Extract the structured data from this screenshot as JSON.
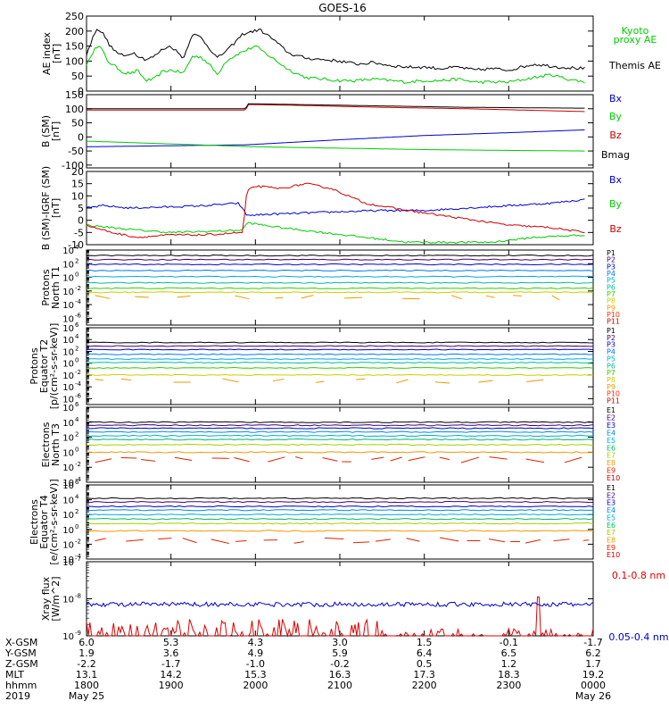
{
  "title": "GOES-16",
  "chart_data": [
    {
      "type": "line",
      "ylabel": [
        "AE index",
        "[nT]"
      ],
      "ylim": [
        0,
        250
      ],
      "yscale": "linear",
      "yticks": [
        0,
        50,
        100,
        150,
        200,
        250
      ],
      "yticklabels": [
        "0",
        "50",
        "100",
        "150",
        "200",
        "250"
      ],
      "series": [
        {
          "name": "Kyoto proxy AE",
          "label_lines": [
            "Kyoto",
            "proxy AE"
          ],
          "color": "#00cc00",
          "x": [
            0,
            0.05,
            0.1,
            0.17,
            0.25,
            0.35,
            0.45,
            0.55,
            0.6,
            0.7,
            0.8,
            0.9,
            1.0,
            1.15,
            1.25,
            1.35,
            1.45,
            1.55,
            1.65,
            1.8,
            2.0,
            2.2,
            2.4,
            2.6,
            2.8,
            3.0,
            3.2,
            3.4,
            3.6,
            3.8,
            4.0,
            4.2,
            4.4,
            4.6,
            4.8,
            5.0,
            5.2,
            5.5,
            5.7,
            5.9
          ],
          "values": [
            90,
            110,
            150,
            145,
            100,
            80,
            60,
            60,
            70,
            35,
            40,
            65,
            70,
            60,
            115,
            115,
            90,
            55,
            100,
            125,
            150,
            110,
            70,
            45,
            40,
            35,
            35,
            40,
            35,
            30,
            35,
            35,
            40,
            30,
            30,
            30,
            40,
            55,
            40,
            30
          ]
        },
        {
          "name": "Themis AE",
          "label_lines": [
            "Themis AE"
          ],
          "color": "#000000",
          "x": [
            0,
            0.05,
            0.12,
            0.2,
            0.28,
            0.35,
            0.45,
            0.55,
            0.6,
            0.7,
            0.8,
            0.9,
            1.0,
            1.15,
            1.25,
            1.35,
            1.45,
            1.55,
            1.7,
            1.85,
            2.05,
            2.2,
            2.4,
            2.6,
            2.8,
            3.0,
            3.2,
            3.4,
            3.6,
            3.8,
            4.0,
            4.2,
            4.4,
            4.6,
            4.8,
            5.0,
            5.3,
            5.6,
            5.9
          ],
          "values": [
            120,
            160,
            210,
            190,
            150,
            130,
            115,
            130,
            120,
            105,
            115,
            140,
            150,
            110,
            190,
            180,
            145,
            110,
            145,
            190,
            205,
            175,
            125,
            110,
            105,
            100,
            90,
            95,
            85,
            80,
            80,
            75,
            80,
            70,
            75,
            70,
            90,
            80,
            75
          ]
        }
      ]
    },
    {
      "type": "line",
      "ylabel": [
        "B (SM)",
        "[nT]"
      ],
      "ylim": [
        -110,
        150
      ],
      "yscale": "linear",
      "yticks": [
        -100,
        -50,
        0,
        50,
        100,
        150
      ],
      "yticklabels": [
        "-100",
        "-50",
        "0",
        "50",
        "100",
        "150"
      ],
      "series": [
        {
          "name": "Bx",
          "color": "#0000cc",
          "x": [
            0,
            1.9,
            3,
            4,
            5,
            5.9
          ],
          "values": [
            -35,
            -28,
            -10,
            5,
            15,
            25
          ]
        },
        {
          "name": "By",
          "color": "#00cc00",
          "x": [
            0,
            1,
            2,
            3,
            4,
            5,
            5.9
          ],
          "values": [
            -15,
            -25,
            -35,
            -40,
            -45,
            -48,
            -50
          ]
        },
        {
          "name": "Bz",
          "color": "#cc0000",
          "x": [
            0,
            1.89,
            1.9,
            2.5,
            3.5,
            4.5,
            5.9
          ],
          "values": [
            95,
            95,
            115,
            112,
            105,
            100,
            90
          ]
        },
        {
          "name": "Bmag",
          "color": "#000000",
          "x": [
            0,
            1.89,
            1.9,
            2.5,
            3.5,
            4.5,
            5.9
          ],
          "values": [
            100,
            100,
            118,
            115,
            110,
            105,
            102
          ]
        }
      ]
    },
    {
      "type": "line",
      "ylabel": [
        "B (SM)-IGRF (SM)",
        "[nT]"
      ],
      "ylim": [
        -10,
        20
      ],
      "yscale": "linear",
      "yticks": [
        -10,
        -5,
        0,
        5,
        10,
        15,
        20
      ],
      "yticklabels": [
        "-10",
        "-5",
        "0",
        "5",
        "10",
        "15",
        "20"
      ],
      "series": [
        {
          "name": "Bx",
          "color": "#0000cc",
          "x": [
            0,
            0.2,
            0.5,
            1,
            1.4,
            1.8,
            1.9,
            2.2,
            2.6,
            3,
            3.5,
            4,
            4.5,
            5,
            5.5,
            5.9
          ],
          "values": [
            5,
            6,
            5,
            5.5,
            6,
            7,
            2,
            2.5,
            3,
            3.5,
            4,
            4,
            5,
            6,
            7,
            8.5
          ]
        },
        {
          "name": "By",
          "color": "#00cc00",
          "x": [
            0,
            0.3,
            0.6,
            1,
            1.5,
            1.85,
            1.9,
            2.3,
            2.8,
            3.3,
            3.8,
            4.2,
            4.8,
            5.3,
            5.9
          ],
          "values": [
            -2,
            -3,
            -4,
            -5,
            -4.5,
            -4,
            -1,
            -3,
            -5,
            -7,
            -9,
            -9,
            -9,
            -7,
            -6
          ]
        },
        {
          "name": "Bz",
          "color": "#cc0000",
          "x": [
            0,
            0.3,
            0.6,
            1,
            1.4,
            1.85,
            1.9,
            2.0,
            2.3,
            2.6,
            2.9,
            3.3,
            3.8,
            4.2,
            4.6,
            5,
            5.5,
            5.9
          ],
          "values": [
            -2,
            -5,
            -7,
            -6,
            -6,
            -5,
            12,
            14,
            13,
            15,
            13,
            7,
            4,
            2,
            0,
            -2,
            -3,
            -5
          ]
        }
      ]
    },
    {
      "type": "line",
      "ylabel": [
        "Protons",
        "North T1"
      ],
      "ylim": [
        -7,
        4
      ],
      "yscale": "log",
      "yticks": [
        -6,
        -4,
        -2,
        0,
        2,
        4
      ],
      "yticklabels": [
        "10",
        "10",
        "10",
        "10",
        "10",
        "10"
      ],
      "ytick_exponents": [
        "-6",
        "-4",
        "-2",
        "0",
        "2",
        "4"
      ],
      "series": [
        {
          "name": "P1",
          "color": "#000000",
          "level": 3.2
        },
        {
          "name": "P2",
          "color": "#440077",
          "level": 2.6
        },
        {
          "name": "P3",
          "color": "#0000cc",
          "level": 1.9
        },
        {
          "name": "P4",
          "color": "#0077ee",
          "level": 1.0
        },
        {
          "name": "P5",
          "color": "#00aadd",
          "level": 0.1
        },
        {
          "name": "P6",
          "color": "#00bb99",
          "level": -0.8
        },
        {
          "name": "P7",
          "color": "#33cc00",
          "level": -1.6
        },
        {
          "name": "P8",
          "color": "#cccc00",
          "level": -2.2
        },
        {
          "name": "P9",
          "color": "#ee9900",
          "level": -3.0,
          "dashed": true
        },
        {
          "name": "P10",
          "color": "#ee3300",
          "level": -4.5,
          "hidden": true
        },
        {
          "name": "P11",
          "color": "#cc0000",
          "level": -5.5,
          "hidden": true
        }
      ]
    },
    {
      "type": "line",
      "ylabel": [
        "Protons",
        "Equator T2",
        "[p/(cm²-s-sr-keV)]"
      ],
      "ylim": [
        -7,
        6
      ],
      "yscale": "log",
      "yticks": [
        -6,
        -4,
        -2,
        0,
        2,
        4,
        6
      ],
      "yticklabels": [
        "10",
        "10",
        "10",
        "10",
        "10",
        "10",
        "10"
      ],
      "ytick_exponents": [
        "-6",
        "-4",
        "-2",
        "0",
        "2",
        "4",
        "6"
      ],
      "series": [
        {
          "name": "P1",
          "color": "#000000",
          "level": 3.5
        },
        {
          "name": "P2",
          "color": "#440077",
          "level": 2.9
        },
        {
          "name": "P3",
          "color": "#0000cc",
          "level": 2.3
        },
        {
          "name": "P4",
          "color": "#0077ee",
          "level": 1.5
        },
        {
          "name": "P5",
          "color": "#00aadd",
          "level": 0.7
        },
        {
          "name": "P6",
          "color": "#00bb99",
          "level": 0.1
        },
        {
          "name": "P7",
          "color": "#33cc00",
          "level": -0.8
        },
        {
          "name": "P8",
          "color": "#cccc00",
          "level": -2.0
        },
        {
          "name": "P9",
          "color": "#ee9900",
          "level": -3.0,
          "dashed": true
        },
        {
          "name": "P10",
          "color": "#ee3300",
          "level": -4.5,
          "hidden": true
        },
        {
          "name": "P11",
          "color": "#cc0000",
          "level": -5.5,
          "hidden": true
        }
      ]
    },
    {
      "type": "line",
      "ylabel": [
        "Electrons",
        "North T3"
      ],
      "ylim": [
        -4,
        6
      ],
      "yscale": "log",
      "yticks": [
        -4,
        -2,
        0,
        2,
        4,
        6
      ],
      "yticklabels": [
        "10",
        "10",
        "10",
        "10",
        "10",
        "10"
      ],
      "ytick_exponents": [
        "-4",
        "-2",
        "0",
        "2",
        "4",
        "6"
      ],
      "series": [
        {
          "name": "E1",
          "color": "#000000",
          "level": 4.0
        },
        {
          "name": "E2",
          "color": "#440077",
          "level": 3.6
        },
        {
          "name": "E3",
          "color": "#0000cc",
          "level": 3.2
        },
        {
          "name": "E4",
          "color": "#0088ee",
          "level": 2.7
        },
        {
          "name": "E5",
          "color": "#00aadd",
          "level": 2.2
        },
        {
          "name": "E6",
          "color": "#00bb66",
          "level": 1.7
        },
        {
          "name": "E7",
          "color": "#aacc00",
          "level": 1.0
        },
        {
          "name": "E8",
          "color": "#ee9900",
          "level": 0.0
        },
        {
          "name": "E9",
          "color": "#dd2200",
          "level": -1.0,
          "noisy": true
        },
        {
          "name": "E10",
          "color": "#cc0000",
          "level": -3.0,
          "hidden": true
        }
      ]
    },
    {
      "type": "line",
      "ylabel": [
        "Electrons",
        "Equator T4",
        "[e/(cm²-s-sr-keV)]"
      ],
      "ylim": [
        -4,
        6
      ],
      "yscale": "log",
      "yticks": [
        -4,
        -2,
        0,
        2,
        4,
        6
      ],
      "yticklabels": [
        "10",
        "10",
        "10",
        "10",
        "10",
        "10"
      ],
      "ytick_exponents": [
        "-4",
        "-2",
        "0",
        "2",
        "4",
        "6"
      ],
      "series": [
        {
          "name": "E1",
          "color": "#000000",
          "level": 4.2
        },
        {
          "name": "E2",
          "color": "#440077",
          "level": 3.7
        },
        {
          "name": "E3",
          "color": "#0000cc",
          "level": 3.1
        },
        {
          "name": "E4",
          "color": "#0088ee",
          "level": 2.6
        },
        {
          "name": "E5",
          "color": "#00aadd",
          "level": 2.0
        },
        {
          "name": "E6",
          "color": "#00bb66",
          "level": 1.4
        },
        {
          "name": "E7",
          "color": "#aacc00",
          "level": 0.8
        },
        {
          "name": "E8",
          "color": "#ee9900",
          "level": -0.2
        },
        {
          "name": "E9",
          "color": "#dd2200",
          "level": -1.5,
          "noisy": true
        },
        {
          "name": "E10",
          "color": "#cc0000",
          "level": -3.0,
          "hidden": true
        }
      ]
    },
    {
      "type": "line",
      "ylabel": [
        "Xray flux",
        "[W/m^2]"
      ],
      "ylim": [
        -9,
        -7
      ],
      "yscale": "log",
      "yticks": [
        -9,
        -8,
        -7
      ],
      "yticklabels": [
        "10",
        "10",
        "10"
      ],
      "ytick_exponents": [
        "-9",
        "-8",
        "-7"
      ],
      "series": [
        {
          "name": "0.1-0.8 nm",
          "color": "#dd0000",
          "level": -9.0,
          "spiky": true
        },
        {
          "name": "0.05-0.4 nm",
          "color": "#0000cc",
          "level": -8.15,
          "noisy_small": true
        }
      ]
    }
  ],
  "x_axis": {
    "row_labels": [
      "X-GSM",
      "Y-GSM",
      "Z-GSM",
      "MLT",
      "hhmm",
      "2019"
    ],
    "columns": [
      {
        "values": [
          "6.0",
          "1.9",
          "-2.2",
          "13.1",
          "1800",
          "May 25"
        ]
      },
      {
        "values": [
          "5.3",
          "3.6",
          "-1.7",
          "14.2",
          "1900",
          ""
        ]
      },
      {
        "values": [
          "4.3",
          "4.9",
          "-1.0",
          "15.3",
          "2000",
          ""
        ]
      },
      {
        "values": [
          "3.0",
          "5.9",
          "-0.2",
          "16.3",
          "2100",
          ""
        ]
      },
      {
        "values": [
          "1.5",
          "6.4",
          "0.5",
          "17.3",
          "2200",
          ""
        ]
      },
      {
        "values": [
          "-0.1",
          "6.5",
          "1.2",
          "18.3",
          "2300",
          ""
        ]
      },
      {
        "values": [
          "-1.7",
          "6.2",
          "1.7",
          "19.2",
          "0000",
          "May 26"
        ]
      }
    ]
  },
  "colors": {
    "frame": "#000000",
    "background": "#ffffff"
  }
}
